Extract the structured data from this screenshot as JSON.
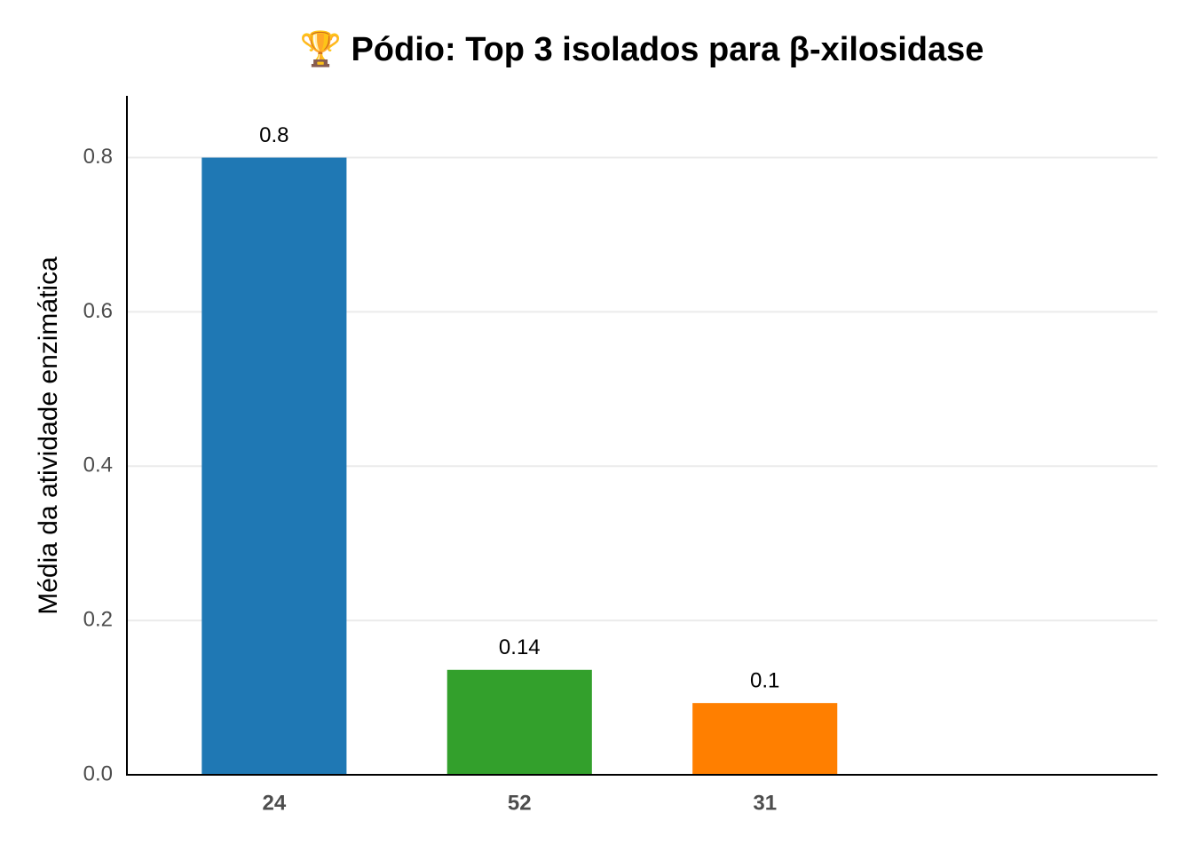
{
  "chart_data": {
    "type": "bar",
    "title": "🏆 Pódio: Top 3 isolados para β-xilosidase",
    "y_label": "Média da atividade enzimática",
    "categories": [
      "24",
      "52",
      "31"
    ],
    "values": [
      0.8,
      0.136,
      0.093
    ],
    "value_labels": [
      "0.8",
      "0.14",
      "0.1"
    ],
    "colors": [
      "#1f78b4",
      "#33a02c",
      "#ff7f00"
    ],
    "ylim": [
      0,
      0.88
    ],
    "yticks": [
      {
        "value": 0,
        "label": "0.0"
      },
      0.2,
      0.4,
      0.6,
      0.8
    ],
    "grid": true
  }
}
